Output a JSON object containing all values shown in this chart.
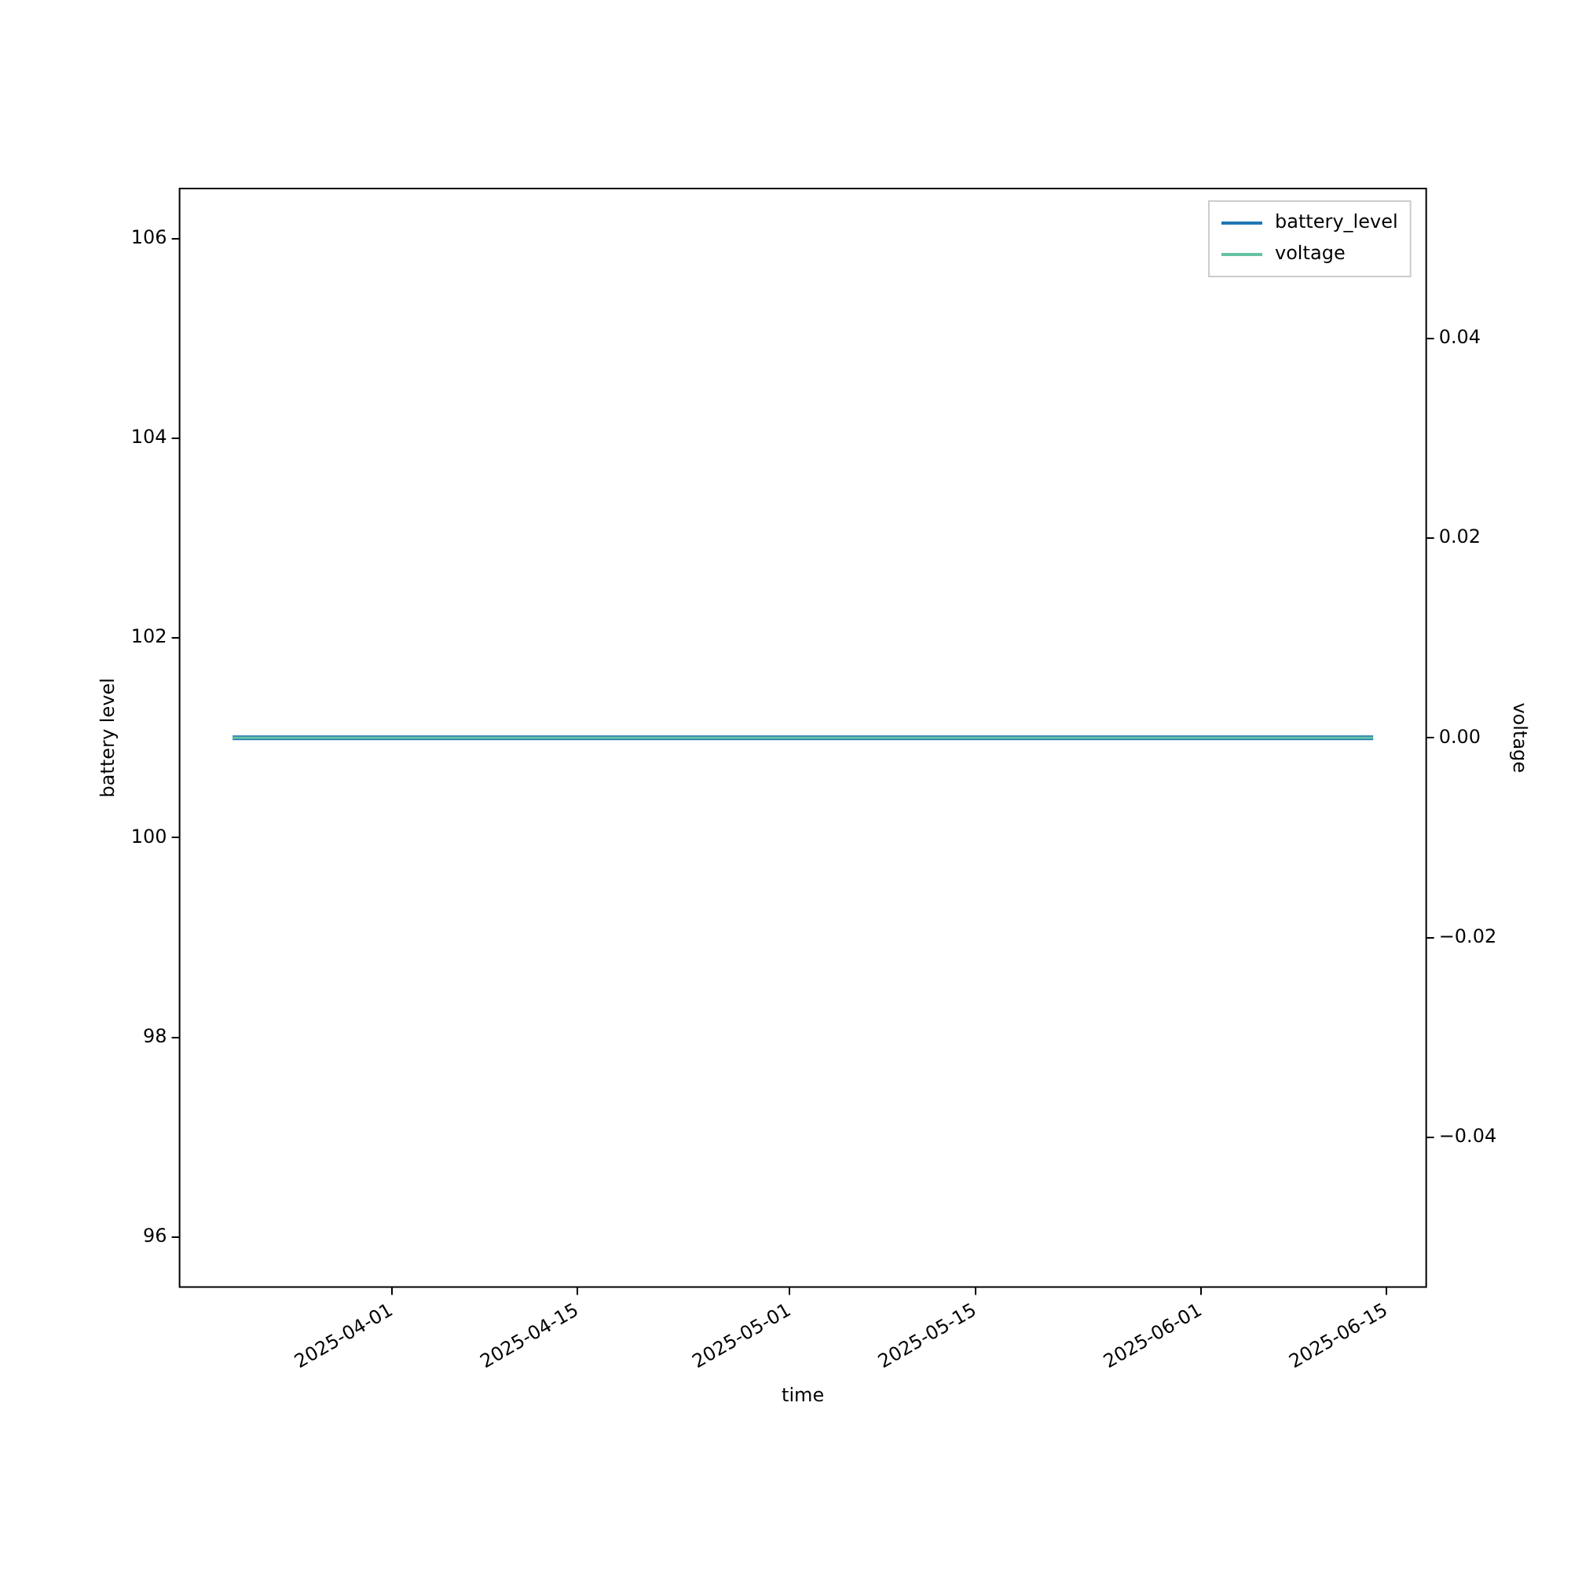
{
  "chart_data": {
    "type": "line",
    "xlabel": "time",
    "ylabel": "battery level",
    "y2label": "voltage",
    "x": [
      "2025-03-20",
      "2025-06-14"
    ],
    "series": [
      {
        "name": "battery_level",
        "color": "#1f77b4",
        "values": [
          101,
          101
        ]
      },
      {
        "name": "voltage",
        "color": "#66c2a5",
        "values": [
          0,
          0
        ],
        "axis": "y2"
      }
    ],
    "xlim": [
      "2025-03-16",
      "2025-06-18"
    ],
    "xticks": [
      "2025-04-01",
      "2025-04-15",
      "2025-05-01",
      "2025-05-15",
      "2025-06-01",
      "2025-06-15"
    ],
    "ylim": [
      95.5,
      106.5
    ],
    "yticks": [
      96,
      98,
      100,
      102,
      104,
      106
    ],
    "y2lim": [
      -0.055,
      0.055
    ],
    "y2ticks": [
      {
        "value": -0.04,
        "label": "−0.04"
      },
      {
        "value": -0.02,
        "label": "−0.02"
      },
      {
        "value": 0,
        "label": "0.00"
      },
      {
        "value": 0.02,
        "label": "0.02"
      },
      {
        "value": 0.04,
        "label": "0.04"
      }
    ],
    "grid": false,
    "legend": "top right",
    "marker": "none",
    "line_style": "solid"
  }
}
